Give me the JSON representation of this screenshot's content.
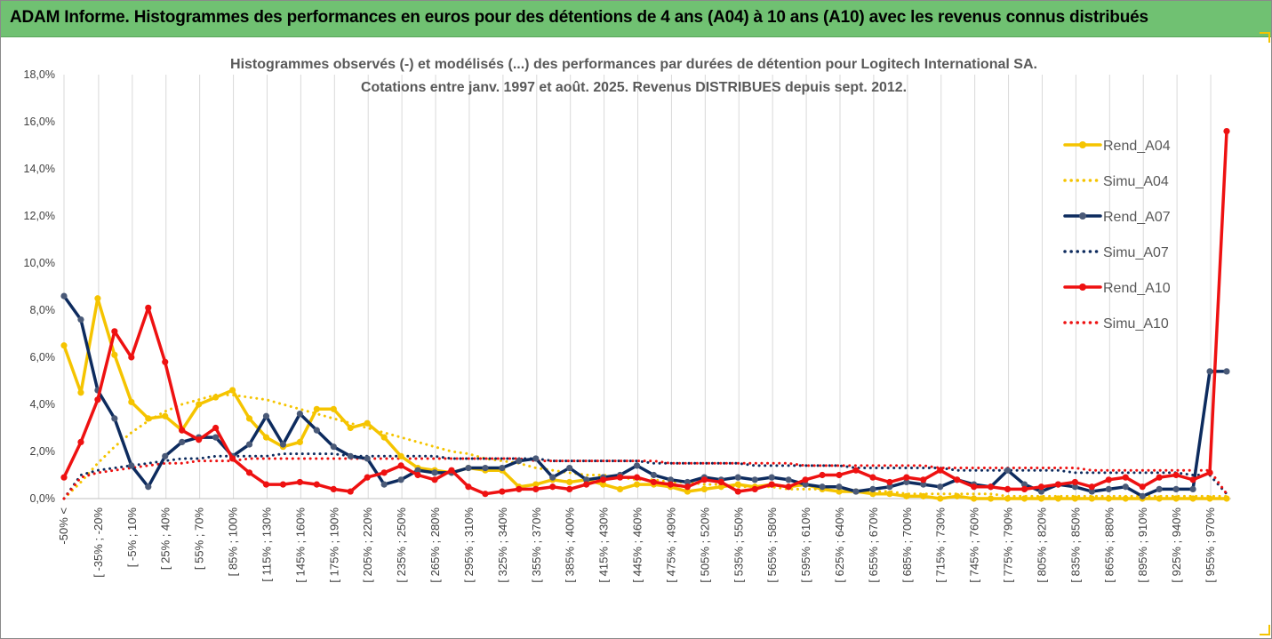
{
  "banner": {
    "title": "ADAM Informe. Histogrammes des performances en euros pour des détentions de 4 ans (A04) à 10 ans (A10) avec les revenus connus distribués",
    "color": "#70c172"
  },
  "chart_data": {
    "type": "line",
    "title_lines": [
      "Histogrammes observés (-) et modélisés (...) des performances par durées de détention pour Logitech International SA.",
      "Cotations entre janv. 1997 et août. 2025. Revenus DISTRIBUES depuis sept. 2012."
    ],
    "ylim": [
      0,
      18
    ],
    "y_ticks": [
      "0,0%",
      "2,0%",
      "4,0%",
      "6,0%",
      "8,0%",
      "10,0%",
      "12,0%",
      "14,0%",
      "16,0%",
      "18,0%"
    ],
    "x_tick_labels": [
      "-50% <",
      "[ -35% ; -20%",
      "[ -5% ; 10%",
      "[ 25% ; 40%",
      "[ 55% ; 70%",
      "[ 85% ; 100%",
      "[ 115% ; 130%",
      "[ 145% ; 160%",
      "[ 175% ; 190%",
      "[ 205% ; 220%",
      "[ 235% ; 250%",
      "[ 265% ; 280%",
      "[ 295% ; 310%",
      "[ 325% ; 340%",
      "[ 355% ; 370%",
      "[ 385% ; 400%",
      "[ 415% ; 430%",
      "[ 445% ; 460%",
      "[ 475% ; 490%",
      "[ 505% ; 520%",
      "[ 535% ; 550%",
      "[ 565% ; 580%",
      "[ 595% ; 610%",
      "[ 625% ; 640%",
      "[ 655% ; 670%",
      "[ 685% ; 700%",
      "[ 715% ; 730%",
      "[ 745% ; 760%",
      "[ 775% ; 790%",
      "[ 805% ; 820%",
      "[ 835% ; 850%",
      "[ 865% ; 880%",
      "[ 895% ; 910%",
      "[ 925% ; 940%",
      "[ 955% ; 970%"
    ],
    "n_points": 70,
    "grid": "vertical",
    "legend_position": "right",
    "series": [
      {
        "name": "Rend_A04",
        "style": "solid",
        "color": "#f5c400",
        "values": [
          6.5,
          4.5,
          8.5,
          6.1,
          4.1,
          3.4,
          3.5,
          2.9,
          4.0,
          4.3,
          4.6,
          3.4,
          2.6,
          2.2,
          2.4,
          3.8,
          3.8,
          3.0,
          3.2,
          2.6,
          1.8,
          1.3,
          1.2,
          1.1,
          1.3,
          1.2,
          1.2,
          0.5,
          0.6,
          0.8,
          0.7,
          0.8,
          0.6,
          0.4,
          0.6,
          0.6,
          0.5,
          0.3,
          0.4,
          0.5,
          0.6,
          0.5,
          0.6,
          0.5,
          0.6,
          0.4,
          0.3,
          0.3,
          0.2,
          0.2,
          0.1,
          0.1,
          0.0,
          0.1,
          0.0,
          0.0,
          0.0,
          0.0,
          0.0,
          0.0,
          0.0,
          0.0,
          0.0,
          0.0,
          0.0,
          0.0,
          0.0,
          0.0,
          0.0,
          0.0
        ]
      },
      {
        "name": "Simu_A04",
        "style": "dotted",
        "color": "#f5c400",
        "values": [
          0.0,
          0.7,
          1.5,
          2.2,
          2.8,
          3.3,
          3.7,
          4.0,
          4.2,
          4.4,
          4.4,
          4.3,
          4.2,
          4.0,
          3.8,
          3.6,
          3.4,
          3.2,
          3.0,
          2.8,
          2.6,
          2.4,
          2.2,
          2.0,
          1.9,
          1.7,
          1.6,
          1.5,
          1.3,
          1.2,
          1.1,
          1.0,
          1.0,
          0.9,
          0.8,
          0.8,
          0.7,
          0.7,
          0.6,
          0.6,
          0.5,
          0.5,
          0.5,
          0.4,
          0.4,
          0.4,
          0.3,
          0.3,
          0.3,
          0.3,
          0.2,
          0.2,
          0.2,
          0.2,
          0.2,
          0.2,
          0.1,
          0.1,
          0.1,
          0.1,
          0.1,
          0.1,
          0.1,
          0.1,
          0.1,
          0.1,
          0.1,
          0.1,
          0.1,
          0.1
        ]
      },
      {
        "name": "Rend_A07",
        "style": "solid",
        "color": "#0d2b5e",
        "values": [
          8.6,
          7.6,
          4.6,
          3.4,
          1.4,
          0.5,
          1.8,
          2.4,
          2.6,
          2.6,
          1.8,
          2.3,
          3.5,
          2.3,
          3.6,
          2.9,
          2.2,
          1.8,
          1.7,
          0.6,
          0.8,
          1.2,
          1.1,
          1.1,
          1.3,
          1.3,
          1.3,
          1.6,
          1.7,
          0.9,
          1.3,
          0.8,
          0.9,
          1.0,
          1.4,
          1.0,
          0.8,
          0.7,
          0.9,
          0.8,
          0.9,
          0.8,
          0.9,
          0.8,
          0.6,
          0.5,
          0.5,
          0.3,
          0.4,
          0.5,
          0.7,
          0.6,
          0.5,
          0.8,
          0.6,
          0.5,
          1.2,
          0.6,
          0.3,
          0.6,
          0.5,
          0.3,
          0.4,
          0.5,
          0.1,
          0.4,
          0.4,
          0.4,
          5.4,
          5.4
        ]
      },
      {
        "name": "Simu_A07",
        "style": "dotted",
        "color": "#0d2b5e",
        "values": [
          0.0,
          1.0,
          1.2,
          1.3,
          1.4,
          1.5,
          1.6,
          1.7,
          1.7,
          1.8,
          1.8,
          1.8,
          1.8,
          1.9,
          1.9,
          1.9,
          1.9,
          1.8,
          1.8,
          1.8,
          1.8,
          1.8,
          1.8,
          1.7,
          1.7,
          1.7,
          1.7,
          1.7,
          1.7,
          1.6,
          1.6,
          1.6,
          1.6,
          1.6,
          1.6,
          1.5,
          1.5,
          1.5,
          1.5,
          1.5,
          1.5,
          1.4,
          1.4,
          1.4,
          1.4,
          1.4,
          1.4,
          1.3,
          1.3,
          1.3,
          1.3,
          1.3,
          1.3,
          1.2,
          1.2,
          1.2,
          1.2,
          1.2,
          1.2,
          1.2,
          1.1,
          1.1,
          1.1,
          1.1,
          1.1,
          1.1,
          1.1,
          1.0,
          1.0,
          0.2
        ]
      },
      {
        "name": "Rend_A10",
        "style": "solid",
        "color": "#ee1111",
        "values": [
          0.9,
          2.4,
          4.2,
          7.1,
          6.0,
          8.1,
          5.8,
          2.9,
          2.5,
          3.0,
          1.7,
          1.1,
          0.6,
          0.6,
          0.7,
          0.6,
          0.4,
          0.3,
          0.9,
          1.1,
          1.4,
          1.0,
          0.8,
          1.2,
          0.5,
          0.2,
          0.3,
          0.4,
          0.4,
          0.5,
          0.4,
          0.6,
          0.8,
          0.9,
          0.9,
          0.7,
          0.6,
          0.5,
          0.8,
          0.7,
          0.3,
          0.4,
          0.6,
          0.5,
          0.8,
          1.0,
          1.0,
          1.2,
          0.9,
          0.7,
          0.9,
          0.8,
          1.2,
          0.8,
          0.5,
          0.5,
          0.4,
          0.4,
          0.5,
          0.6,
          0.7,
          0.5,
          0.8,
          0.9,
          0.5,
          0.9,
          1.0,
          0.8,
          1.1,
          15.6
        ]
      },
      {
        "name": "Simu_A10",
        "style": "dotted",
        "color": "#ee1111",
        "values": [
          0.0,
          0.9,
          1.1,
          1.2,
          1.3,
          1.4,
          1.5,
          1.5,
          1.6,
          1.6,
          1.6,
          1.7,
          1.7,
          1.7,
          1.7,
          1.7,
          1.7,
          1.7,
          1.7,
          1.7,
          1.7,
          1.7,
          1.7,
          1.7,
          1.7,
          1.7,
          1.7,
          1.7,
          1.6,
          1.6,
          1.6,
          1.6,
          1.6,
          1.6,
          1.6,
          1.6,
          1.5,
          1.5,
          1.5,
          1.5,
          1.5,
          1.5,
          1.5,
          1.5,
          1.4,
          1.4,
          1.4,
          1.4,
          1.4,
          1.4,
          1.4,
          1.4,
          1.3,
          1.3,
          1.3,
          1.3,
          1.3,
          1.3,
          1.3,
          1.3,
          1.3,
          1.2,
          1.2,
          1.2,
          1.2,
          1.2,
          1.2,
          1.2,
          1.2,
          0.2
        ]
      }
    ]
  }
}
